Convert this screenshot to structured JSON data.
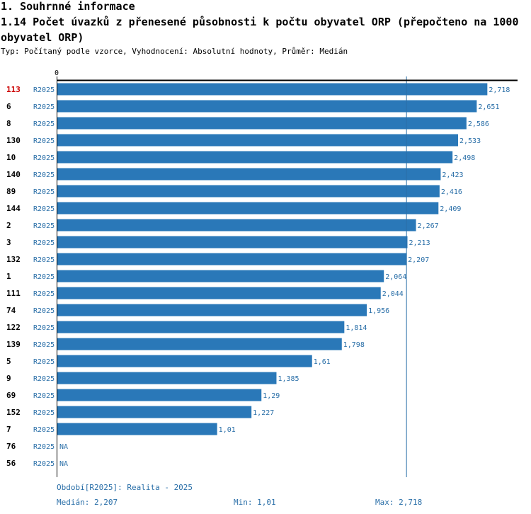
{
  "header": {
    "section": "1. Souhrnné informace",
    "title": "1.14 Počet úvazků z přenesené působnosti k počtu obyvatel ORP (přepočteno na 1000 obyvatel ORP)",
    "subtitle": "Typ: Počítaný podle vzorce, Vyhodnocení: Absolutní hodnoty, Průměr: Medián"
  },
  "chart_data": {
    "type": "bar",
    "orientation": "horizontal",
    "axis_zero_label": "0",
    "xlim": [
      0,
      2.9
    ],
    "highlight_color": "#cc0000",
    "bar_color": "#2a78b8",
    "label_color": "#2a6fa8",
    "median_line": 2.207,
    "rows": [
      {
        "id": "113",
        "period": "R2025",
        "value": 2.718,
        "label": "2,718",
        "highlight": true
      },
      {
        "id": "6",
        "period": "R2025",
        "value": 2.651,
        "label": "2,651"
      },
      {
        "id": "8",
        "period": "R2025",
        "value": 2.586,
        "label": "2,586"
      },
      {
        "id": "130",
        "period": "R2025",
        "value": 2.533,
        "label": "2,533"
      },
      {
        "id": "10",
        "period": "R2025",
        "value": 2.498,
        "label": "2,498"
      },
      {
        "id": "140",
        "period": "R2025",
        "value": 2.423,
        "label": "2,423"
      },
      {
        "id": "89",
        "period": "R2025",
        "value": 2.416,
        "label": "2,416"
      },
      {
        "id": "144",
        "period": "R2025",
        "value": 2.409,
        "label": "2,409"
      },
      {
        "id": "2",
        "period": "R2025",
        "value": 2.267,
        "label": "2,267"
      },
      {
        "id": "3",
        "period": "R2025",
        "value": 2.213,
        "label": "2,213"
      },
      {
        "id": "132",
        "period": "R2025",
        "value": 2.207,
        "label": "2,207"
      },
      {
        "id": "1",
        "period": "R2025",
        "value": 2.064,
        "label": "2,064"
      },
      {
        "id": "111",
        "period": "R2025",
        "value": 2.044,
        "label": "2,044"
      },
      {
        "id": "74",
        "period": "R2025",
        "value": 1.956,
        "label": "1,956"
      },
      {
        "id": "122",
        "period": "R2025",
        "value": 1.814,
        "label": "1,814"
      },
      {
        "id": "139",
        "period": "R2025",
        "value": 1.798,
        "label": "1,798"
      },
      {
        "id": "5",
        "period": "R2025",
        "value": 1.61,
        "label": "1,61"
      },
      {
        "id": "9",
        "period": "R2025",
        "value": 1.385,
        "label": "1,385"
      },
      {
        "id": "69",
        "period": "R2025",
        "value": 1.29,
        "label": "1,29"
      },
      {
        "id": "152",
        "period": "R2025",
        "value": 1.227,
        "label": "1,227"
      },
      {
        "id": "7",
        "period": "R2025",
        "value": 1.01,
        "label": "1,01"
      },
      {
        "id": "76",
        "period": "R2025",
        "value": null,
        "label": "NA"
      },
      {
        "id": "56",
        "period": "R2025",
        "value": null,
        "label": "NA"
      }
    ]
  },
  "footer": {
    "period": "Období[R2025]: Realita - 2025",
    "median": "Medián: 2,207",
    "min": "Min: 1,01",
    "max": "Max: 2,718"
  }
}
